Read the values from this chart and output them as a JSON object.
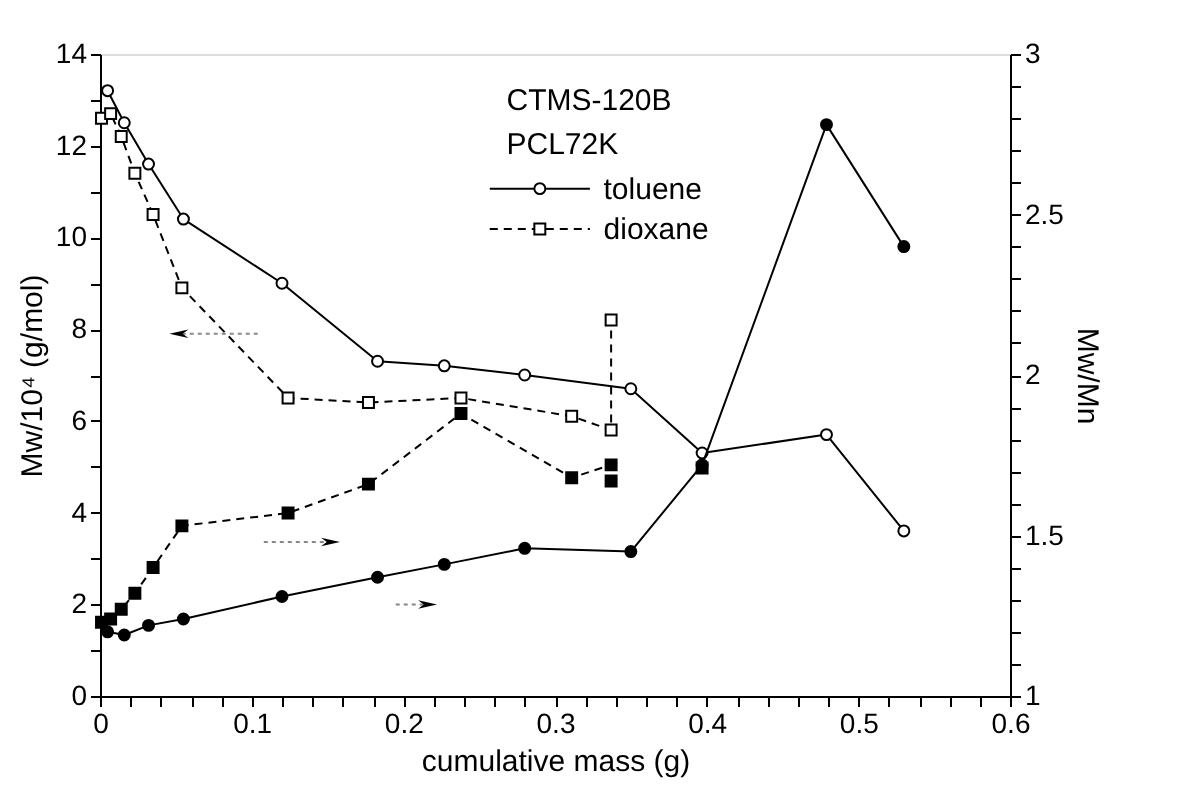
{
  "chart_data": {
    "type": "line",
    "xlabel": "cumulative mass (g)",
    "ylabel": "Mw/10⁴ (g/mol)",
    "y2label": "Mw/Mn",
    "legend_title": "CTMS-120B\nPCL72K",
    "legend": "top right",
    "grid": false,
    "xlim": [
      0,
      0.6
    ],
    "xticks": [
      0,
      {
        "value": 0.02,
        "label": null
      },
      {
        "value": 0.04,
        "label": null
      },
      {
        "value": 0.06,
        "label": null
      },
      {
        "value": 0.08,
        "label": null
      },
      0.1,
      {
        "value": 0.12,
        "label": null
      },
      {
        "value": 0.14,
        "label": null
      },
      {
        "value": 0.16,
        "label": null
      },
      {
        "value": 0.18,
        "label": null
      },
      0.2,
      {
        "value": 0.22,
        "label": null
      },
      {
        "value": 0.24,
        "label": null
      },
      {
        "value": 0.26,
        "label": null
      },
      {
        "value": 0.28,
        "label": null
      },
      0.3,
      {
        "value": 0.32,
        "label": null
      },
      {
        "value": 0.34,
        "label": null
      },
      {
        "value": 0.36,
        "label": null
      },
      {
        "value": 0.38,
        "label": null
      },
      0.4,
      {
        "value": 0.42,
        "label": null
      },
      {
        "value": 0.44,
        "label": null
      },
      {
        "value": 0.46,
        "label": null
      },
      {
        "value": 0.48,
        "label": null
      },
      0.5,
      {
        "value": 0.52,
        "label": null
      },
      {
        "value": 0.54,
        "label": null
      },
      {
        "value": 0.56,
        "label": null
      },
      {
        "value": 0.58,
        "label": null
      },
      0.6
    ],
    "ylim": [
      0,
      14
    ],
    "yticks": [
      0,
      {
        "value": 1,
        "label": null
      },
      2,
      {
        "value": 3,
        "label": null
      },
      4,
      {
        "value": 5,
        "label": null
      },
      6,
      {
        "value": 7,
        "label": null
      },
      8,
      {
        "value": 9,
        "label": null
      },
      10,
      {
        "value": 11,
        "label": null
      },
      12,
      {
        "value": 13,
        "label": null
      },
      14
    ],
    "y2lim": [
      1,
      3
    ],
    "y2ticks": [
      1,
      {
        "value": 1.1,
        "label": null
      },
      {
        "value": 1.2,
        "label": null
      },
      {
        "value": 1.3,
        "label": null
      },
      {
        "value": 1.4,
        "label": null
      },
      1.5,
      {
        "value": 1.6,
        "label": null
      },
      {
        "value": 1.7,
        "label": null
      },
      {
        "value": 1.8,
        "label": null
      },
      {
        "value": 1.9,
        "label": null
      },
      2,
      {
        "value": 2.1,
        "label": null
      },
      {
        "value": 2.2,
        "label": null
      },
      {
        "value": 2.3,
        "label": null
      },
      {
        "value": 2.4,
        "label": null
      },
      2.5,
      {
        "value": 2.6,
        "label": null
      },
      {
        "value": 2.7,
        "label": null
      },
      {
        "value": 2.8,
        "label": null
      },
      {
        "value": 2.9,
        "label": null
      },
      3
    ],
    "series": [
      {
        "name": "toluene",
        "color": "#000000",
        "marker": "circle",
        "line_style": "solid",
        "x": [
          0.005,
          0.016,
          0.032,
          0.055,
          0.12,
          0.183,
          0.227,
          0.28,
          0.35,
          0.397,
          0.479,
          0.53
        ],
        "values": [
          13.2,
          12.5,
          11.6,
          10.4,
          9.0,
          7.3,
          7.2,
          7.0,
          6.7,
          5.3,
          5.7,
          3.6
        ]
      },
      {
        "name": "dioxane",
        "color": "#000000",
        "marker": "square",
        "line_style": "dashed",
        "x": [
          0.001,
          0.007,
          0.014,
          0.023,
          0.035,
          0.054,
          0.124,
          0.177,
          0.238,
          0.311,
          0.337,
          0.337
        ],
        "values": [
          12.6,
          12.7,
          12.2,
          11.4,
          10.5,
          8.9,
          6.5,
          6.4,
          6.5,
          6.1,
          5.8,
          8.2
        ]
      },
      {
        "axis": "y2",
        "color": "#000000",
        "marker": "circle",
        "line_style": "solid",
        "x": [
          0.005,
          0.016,
          0.032,
          0.055,
          0.12,
          0.183,
          0.227,
          0.28,
          0.35,
          0.397,
          0.479,
          0.53
        ],
        "values": [
          1.2,
          1.19,
          1.22,
          1.24,
          1.31,
          1.37,
          1.41,
          1.46,
          1.45,
          1.72,
          2.78,
          2.4
        ]
      },
      {
        "axis": "y2",
        "color": "#000000",
        "marker": "square",
        "line_style": "dashed",
        "x": [
          0.001,
          0.007,
          0.014,
          0.023,
          0.035,
          0.054,
          0.124,
          0.177,
          0.238,
          0.311,
          0.337,
          0.337
        ],
        "values": [
          1.23,
          1.24,
          1.27,
          1.32,
          1.4,
          1.53,
          1.57,
          1.66,
          1.88,
          1.68,
          1.72,
          1.67
        ]
      },
      {
        "type": "scatter",
        "axis": "y2",
        "color": "#000000",
        "marker": "square",
        "x": [
          0.397
        ],
        "values": [
          1.71
        ]
      }
    ]
  }
}
